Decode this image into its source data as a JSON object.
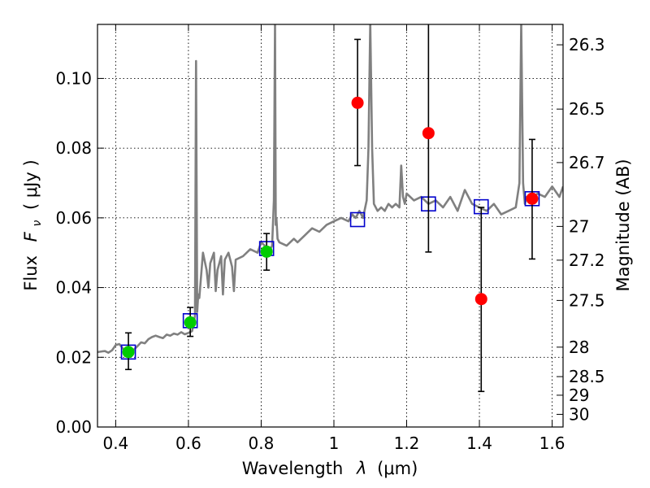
{
  "chart_data": {
    "type": "scatter",
    "xlabel": "Wavelength",
    "xlabel_symbol": "λ",
    "xlabel_unit": "(μm)",
    "ylabel": "Flux",
    "ylabel_symbol": "F",
    "ylabel_subscript": "ν",
    "ylabel_unit": "( μJy )",
    "y2label": "Magnitude (AB)",
    "xlim": [
      0.35,
      1.63
    ],
    "ylim": [
      0,
      0.1155
    ],
    "grid": true,
    "x_ticks": [
      {
        "value": 0.4,
        "label": "0.4"
      },
      {
        "value": 0.6,
        "label": "0.6"
      },
      {
        "value": 0.8,
        "label": "0.8"
      },
      {
        "value": 1.0,
        "label": "1"
      },
      {
        "value": 1.2,
        "label": "1.2"
      },
      {
        "value": 1.4,
        "label": "1.4"
      },
      {
        "value": 1.6,
        "label": "1.6"
      }
    ],
    "y_ticks": [
      {
        "value": 0.0,
        "label": "0.00"
      },
      {
        "value": 0.02,
        "label": "0.02"
      },
      {
        "value": 0.04,
        "label": "0.04"
      },
      {
        "value": 0.06,
        "label": "0.06"
      },
      {
        "value": 0.08,
        "label": "0.08"
      },
      {
        "value": 0.1,
        "label": "0.10"
      }
    ],
    "y2_ticks": [
      {
        "value": 26.3,
        "label": "26.3"
      },
      {
        "value": 26.5,
        "label": "26.5"
      },
      {
        "value": 26.7,
        "label": "26.7"
      },
      {
        "value": 27.0,
        "label": "27"
      },
      {
        "value": 27.2,
        "label": "27.2"
      },
      {
        "value": 27.5,
        "label": "27.5"
      },
      {
        "value": 28.0,
        "label": "28"
      },
      {
        "value": 28.5,
        "label": "28.5"
      },
      {
        "value": 29.0,
        "label": "29"
      },
      {
        "value": 30.0,
        "label": "30"
      }
    ],
    "series": [
      {
        "kind": "line",
        "color": "#808080",
        "x": [
          0.35,
          0.37,
          0.38,
          0.39,
          0.4,
          0.41,
          0.42,
          0.43,
          0.44,
          0.45,
          0.46,
          0.47,
          0.48,
          0.49,
          0.5,
          0.51,
          0.52,
          0.53,
          0.54,
          0.55,
          0.56,
          0.57,
          0.58,
          0.59,
          0.6,
          0.61,
          0.615,
          0.618,
          0.621,
          0.624,
          0.627,
          0.63,
          0.64,
          0.65,
          0.655,
          0.66,
          0.67,
          0.675,
          0.68,
          0.69,
          0.695,
          0.7,
          0.71,
          0.72,
          0.725,
          0.73,
          0.75,
          0.77,
          0.79,
          0.8,
          0.81,
          0.82,
          0.83,
          0.835,
          0.838,
          0.84,
          0.842,
          0.845,
          0.85,
          0.87,
          0.89,
          0.9,
          0.92,
          0.94,
          0.96,
          0.98,
          1.0,
          1.02,
          1.04,
          1.05,
          1.06,
          1.07,
          1.08,
          1.09,
          1.095,
          1.1,
          1.105,
          1.11,
          1.12,
          1.13,
          1.14,
          1.15,
          1.16,
          1.17,
          1.18,
          1.185,
          1.19,
          1.195,
          1.2,
          1.22,
          1.24,
          1.26,
          1.28,
          1.3,
          1.32,
          1.34,
          1.36,
          1.38,
          1.4,
          1.42,
          1.44,
          1.46,
          1.48,
          1.5,
          1.51,
          1.515,
          1.52,
          1.525,
          1.53,
          1.54,
          1.56,
          1.58,
          1.6,
          1.62,
          1.63
        ],
        "y": [
          0.0215,
          0.0218,
          0.0213,
          0.022,
          0.0235,
          0.0238,
          0.0225,
          0.021,
          0.0215,
          0.0222,
          0.0232,
          0.0243,
          0.024,
          0.0252,
          0.0258,
          0.0262,
          0.0258,
          0.0255,
          0.0265,
          0.0262,
          0.0268,
          0.0265,
          0.0272,
          0.0266,
          0.027,
          0.0275,
          0.03,
          0.032,
          0.105,
          0.033,
          0.038,
          0.037,
          0.05,
          0.045,
          0.04,
          0.047,
          0.05,
          0.039,
          0.045,
          0.049,
          0.038,
          0.048,
          0.05,
          0.046,
          0.039,
          0.048,
          0.049,
          0.051,
          0.05,
          0.053,
          0.052,
          0.05,
          0.052,
          0.065,
          0.116,
          0.058,
          0.06,
          0.054,
          0.053,
          0.052,
          0.054,
          0.053,
          0.055,
          0.057,
          0.056,
          0.058,
          0.059,
          0.06,
          0.059,
          0.061,
          0.06,
          0.062,
          0.06,
          0.065,
          0.08,
          0.116,
          0.08,
          0.064,
          0.062,
          0.063,
          0.062,
          0.064,
          0.063,
          0.064,
          0.063,
          0.075,
          0.066,
          0.064,
          0.067,
          0.065,
          0.066,
          0.064,
          0.065,
          0.063,
          0.066,
          0.062,
          0.068,
          0.064,
          0.063,
          0.062,
          0.064,
          0.061,
          0.062,
          0.063,
          0.07,
          0.116,
          0.07,
          0.064,
          0.066,
          0.065,
          0.067,
          0.066,
          0.069,
          0.066,
          0.069
        ]
      },
      {
        "kind": "open-squares",
        "color": "#0000cc",
        "x": [
          0.435,
          0.605,
          0.815,
          1.065,
          1.26,
          1.405,
          1.545
        ],
        "y": [
          0.0215,
          0.0305,
          0.0512,
          0.0595,
          0.064,
          0.0632,
          0.0655
        ]
      },
      {
        "kind": "points",
        "color": "#00cc00",
        "x": [
          0.435,
          0.605,
          0.815
        ],
        "y": [
          0.0215,
          0.03,
          0.0503
        ],
        "yerr_low": [
          0.0165,
          0.026,
          0.045
        ],
        "yerr_high": [
          0.027,
          0.0343,
          0.0555
        ]
      },
      {
        "kind": "points",
        "color": "#ff0000",
        "x": [
          1.065,
          1.26,
          1.405,
          1.545
        ],
        "y": [
          0.093,
          0.0843,
          0.0367,
          0.0655
        ],
        "yerr_low": [
          0.075,
          0.0502,
          0.0102,
          0.0482
        ],
        "yerr_high": [
          0.1112,
          0.1155,
          0.063,
          0.0825
        ]
      }
    ]
  }
}
